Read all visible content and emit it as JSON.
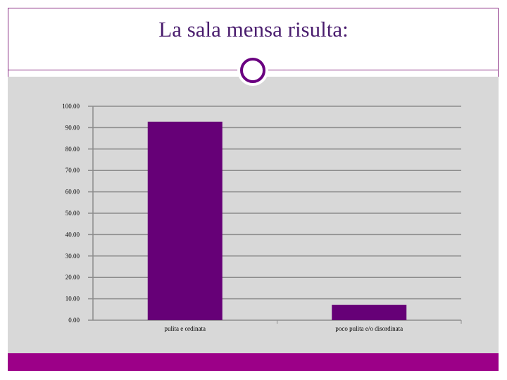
{
  "slide": {
    "title": "La sala mensa risulta:"
  },
  "colors": {
    "frame": "#8a2e84",
    "panel": "#d8d8d8",
    "bar": "#660077",
    "accent_bar": "#9c0088"
  },
  "chart_data": {
    "type": "bar",
    "categories": [
      "pulita e ordinata",
      "poco pulita e/o disordinata"
    ],
    "values": [
      92.8,
      7.2
    ],
    "yticks": [
      "0.00",
      "10.00",
      "20.00",
      "30.00",
      "40.00",
      "50.00",
      "60.00",
      "70.00",
      "80.00",
      "90.00",
      "100.00"
    ],
    "ylim": [
      0,
      100
    ],
    "grid": true,
    "legend": "none"
  }
}
